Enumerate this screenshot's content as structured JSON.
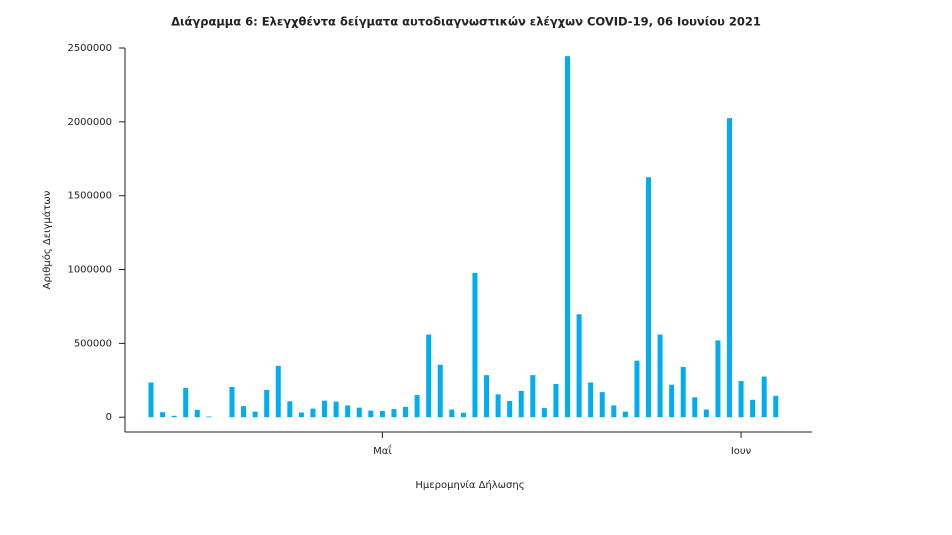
{
  "chart_data": {
    "type": "bar",
    "title": "Διάγραμμα 6: Ελεγχθέντα δείγματα αυτοδιαγνωστικών ελέγχων COVID-19, 06 Ιουνίου 2021",
    "x_label": "Ημερομηνία Δήλωσης",
    "y_label": "Αριθμός Δειγμάτων",
    "categories": [
      null,
      null,
      null,
      null,
      null,
      null,
      null,
      null,
      null,
      null,
      null,
      null,
      null,
      null,
      null,
      null,
      null,
      null,
      null,
      null,
      "Μαΐ",
      null,
      null,
      null,
      null,
      null,
      null,
      null,
      null,
      null,
      null,
      null,
      null,
      null,
      null,
      null,
      null,
      null,
      null,
      null,
      null,
      null,
      null,
      null,
      null,
      null,
      null,
      null,
      null,
      null,
      null,
      "Ιουν",
      null,
      null,
      null
    ],
    "values": [
      235000,
      34000,
      10000,
      198000,
      50000,
      5000,
      0,
      205000,
      75000,
      38000,
      185000,
      348000,
      108000,
      32000,
      58000,
      112000,
      106000,
      80000,
      65000,
      45000,
      42000,
      55000,
      70000,
      150000,
      560000,
      355000,
      52000,
      30000,
      977000,
      285000,
      155000,
      110000,
      178000,
      285000,
      62000,
      225000,
      2445000,
      697000,
      235000,
      170000,
      80000,
      38000,
      383000,
      1625000,
      560000,
      220000,
      340000,
      135000,
      52000,
      520000,
      2025000,
      245000,
      118000,
      275000,
      145000
    ],
    "color": "#00aeef",
    "ylim": [
      -100000,
      2500000
    ],
    "yticks": [
      0,
      500000,
      1000000,
      1500000,
      2000000,
      2500000
    ],
    "grid": false
  }
}
